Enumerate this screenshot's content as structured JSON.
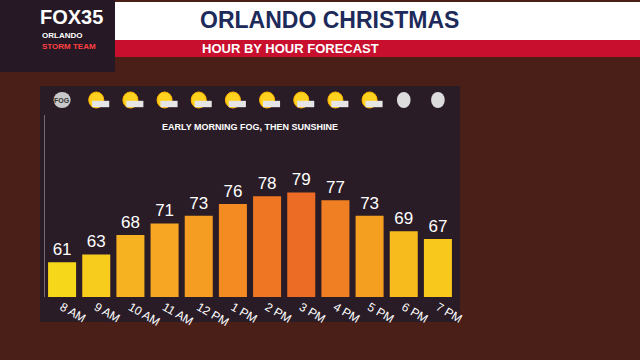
{
  "chart_data": {
    "type": "bar",
    "title": "ORLANDO CHRISTMAS",
    "subtitle": "HOUR BY HOUR FORECAST",
    "annotations": [
      "EARLY MORNING FOG, THEN SUNSHINE",
      "FOG"
    ],
    "logo": [
      "FOX35",
      "ORLANDO",
      "STORM TEAM"
    ],
    "categories": [
      "8 AM",
      "9 AM",
      "10 AM",
      "11 AM",
      "12 PM",
      "1 PM",
      "2 PM",
      "3 PM",
      "4 PM",
      "5 PM",
      "6 PM",
      "7 PM"
    ],
    "values": [
      61,
      63,
      68,
      71,
      73,
      76,
      78,
      79,
      77,
      73,
      69,
      67
    ],
    "colors": [
      "#f7d71a",
      "#f8cc1c",
      "#f7b221",
      "#f6a623",
      "#f59c22",
      "#f38a22",
      "#ef7724",
      "#ed6c25",
      "#f07e22",
      "#f59f20",
      "#f7bb1d",
      "#f8c81c"
    ],
    "ylim": [
      52,
      99
    ],
    "yticks": [],
    "tick_labels": "x",
    "data_labels": true,
    "grid": false
  }
}
